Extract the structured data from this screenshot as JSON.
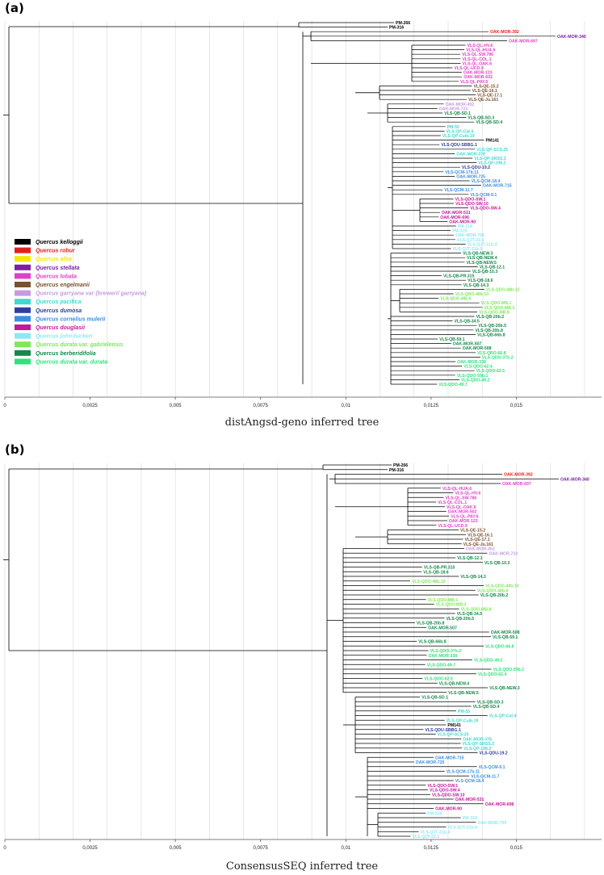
{
  "panels": [
    {
      "label": "(a)",
      "caption": "distAngsd-geno inferred tree",
      "axis_ticks": [
        "0",
        "0,0025",
        "0,005",
        "0,0075",
        "0,01",
        "0,0125",
        "0,015"
      ],
      "leaves": [
        {
          "name": "PM-266",
          "species": "kelloggii"
        },
        {
          "name": "PM-316",
          "species": "kelloggii"
        },
        {
          "name": "OAK-MOR-392",
          "species": "robur"
        },
        {
          "name": "OAK-MOR-340",
          "species": "stellata"
        },
        {
          "name": "OAK-MOR-697",
          "species": "lobata"
        },
        {
          "name": "VLS-QL-HV.6",
          "species": "lobata"
        },
        {
          "name": "VLS-QL-HUA.6",
          "species": "lobata"
        },
        {
          "name": "VLS-QL-SW.786",
          "species": "lobata"
        },
        {
          "name": "VLS-QL-COL.1",
          "species": "lobata"
        },
        {
          "name": "VLS-QL-OAK.6",
          "species": "lobata"
        },
        {
          "name": "VLS-QL-UCD.9",
          "species": "lobata"
        },
        {
          "name": "OAK-MOR-123",
          "species": "lobata"
        },
        {
          "name": "OAK-MOR-502",
          "species": "lobata"
        },
        {
          "name": "VLS-QL-PAY.6",
          "species": "lobata"
        },
        {
          "name": "VLS-QE-15.2",
          "species": "engelmanii"
        },
        {
          "name": "VLS-QE-16.1",
          "species": "engelmanii"
        },
        {
          "name": "VLS-QE-17.1",
          "species": "engelmanii"
        },
        {
          "name": "VLS-QE-Ju.161",
          "species": "engelmanii"
        },
        {
          "name": "OAK-MOR-452",
          "species": "garryana"
        },
        {
          "name": "OAK-MOR-723",
          "species": "garryana"
        },
        {
          "name": "VLS-QB-SD.1",
          "species": "berberidifolia"
        },
        {
          "name": "VLS-QB-SD.3",
          "species": "berberidifolia"
        },
        {
          "name": "VLS-QB-SD.4",
          "species": "berberidifolia"
        },
        {
          "name": "PM-55",
          "species": "pacifica"
        },
        {
          "name": "VLS-QP-Cat.4",
          "species": "pacifica"
        },
        {
          "name": "VLS-QP-Cuib.19",
          "species": "pacifica"
        },
        {
          "name": "PM141",
          "species": "kelloggii"
        },
        {
          "name": "VLS-QDU-SBBG.1",
          "species": "dumosa"
        },
        {
          "name": "VLS-QP-SCS.25",
          "species": "pacifica"
        },
        {
          "name": "OAK-MOR-378",
          "species": "pacifica"
        },
        {
          "name": "VLS-QP-SRSS.3",
          "species": "pacifica"
        },
        {
          "name": "VLS-QP-198.2",
          "species": "pacifica"
        },
        {
          "name": "VLS-QDU-19.2",
          "species": "dumosa"
        },
        {
          "name": "VLS-QCM-17b.11",
          "species": "cornelius"
        },
        {
          "name": "OAK-MOR-725",
          "species": "cornelius"
        },
        {
          "name": "VLS-QCM-18.4",
          "species": "cornelius"
        },
        {
          "name": "OAK-MOR-715",
          "species": "cornelius"
        },
        {
          "name": "VLS-QCM-11.7",
          "species": "cornelius"
        },
        {
          "name": "VLS-QCM-9.1",
          "species": "cornelius"
        },
        {
          "name": "VLS-QDO-SW.1",
          "species": "douglasii"
        },
        {
          "name": "VLS-QDO-SW.10",
          "species": "douglasii"
        },
        {
          "name": "VLS-QDO-SW.4",
          "species": "douglasii"
        },
        {
          "name": "OAK-MOR-531",
          "species": "douglasii"
        },
        {
          "name": "OAK-MOR-696",
          "species": "douglasii"
        },
        {
          "name": "OAK-MOR-90",
          "species": "douglasii"
        },
        {
          "name": "PM-318",
          "species": "johntuckeri"
        },
        {
          "name": "PM-319",
          "species": "johntuckeri"
        },
        {
          "name": "OAK-MOR-709",
          "species": "johntuckeri"
        },
        {
          "name": "VLS-QJT-22.3",
          "species": "johntuckeri"
        },
        {
          "name": "VLS-QJT-21b.4",
          "species": "johntuckeri"
        },
        {
          "name": "VLS-QJT-21b.6",
          "species": "johntuckeri"
        },
        {
          "name": "VLS-QB-NEW.3",
          "species": "berberidifolia"
        },
        {
          "name": "VLS-QB-NEW.4",
          "species": "berberidifolia"
        },
        {
          "name": "VLS-QB-NEW.5",
          "species": "berberidifolia"
        },
        {
          "name": "VLS-QB-12.1",
          "species": "berberidifolia"
        },
        {
          "name": "VLS-QB-10.3",
          "species": "berberidifolia"
        },
        {
          "name": "VLS-QB-PR.315",
          "species": "berberidifolia"
        },
        {
          "name": "VLS-QB-18.6",
          "species": "berberidifolia"
        },
        {
          "name": "VLS-QB-14.3",
          "species": "berberidifolia"
        },
        {
          "name": "VLS-QDO-48b.12",
          "species": "gabrielensis"
        },
        {
          "name": "VLS-QDO-48b.10",
          "species": "gabrielensis"
        },
        {
          "name": "VLS-QDO-48b.6",
          "species": "gabrielensis"
        },
        {
          "name": "VLS-QDO-MB.1",
          "species": "gabrielensis"
        },
        {
          "name": "VLS-QDO-MB.3",
          "species": "gabrielensis"
        },
        {
          "name": "VLS-QDO-MB.8",
          "species": "gabrielensis"
        },
        {
          "name": "VLS-QB-20b.2",
          "species": "berberidifolia"
        },
        {
          "name": "VLS-QB-34.5",
          "species": "berberidifolia"
        },
        {
          "name": "VLS-QB-20b.5",
          "species": "berberidifolia"
        },
        {
          "name": "VLS-QB-20b.8",
          "species": "berberidifolia"
        },
        {
          "name": "VLS-QB-66b.8",
          "species": "berberidifolia"
        },
        {
          "name": "VLS-QB-59.1",
          "species": "berberidifolia"
        },
        {
          "name": "OAK-MOR-507",
          "species": "berberidifolia"
        },
        {
          "name": "OAK-MOR-508",
          "species": "berberidifolia"
        },
        {
          "name": "VLS-QDO-66.8",
          "species": "durata"
        },
        {
          "name": "VLS-QDO-37b.2",
          "species": "durata"
        },
        {
          "name": "OAK-MOR-338",
          "species": "durata"
        },
        {
          "name": "VLS-QDO-62.4",
          "species": "durata"
        },
        {
          "name": "VLS-QDO-62.5",
          "species": "durata"
        },
        {
          "name": "VLS-QDO-59b.1",
          "species": "durata"
        },
        {
          "name": "VLS-QDO-49.2",
          "species": "durata"
        },
        {
          "name": "VLS-QDO-49.7",
          "species": "durata"
        }
      ]
    },
    {
      "label": "(b)",
      "caption": "ConsensusSEQ inferred tree",
      "axis_ticks": [
        "0",
        "0,0025",
        "0,005",
        "0,0075",
        "0,01",
        "0,0125",
        "0,015"
      ],
      "leaves": [
        {
          "name": "PM-266",
          "species": "kelloggii"
        },
        {
          "name": "PM-316",
          "species": "kelloggii"
        },
        {
          "name": "OAK-MOR-392",
          "species": "robur"
        },
        {
          "name": "OAK-MOR-340",
          "species": "stellata"
        },
        {
          "name": "OAK-MOR-697",
          "species": "lobata"
        },
        {
          "name": "VLS-QL-HUA.6",
          "species": "lobata"
        },
        {
          "name": "VLS-QL-HV.6",
          "species": "lobata"
        },
        {
          "name": "VLS-QL-SW.786",
          "species": "lobata"
        },
        {
          "name": "VLS-QL-COL.1",
          "species": "lobata"
        },
        {
          "name": "VLS-QL-OAK.6",
          "species": "lobata"
        },
        {
          "name": "OAK-MOR-502",
          "species": "lobata"
        },
        {
          "name": "VLS-QL-PAY.6",
          "species": "lobata"
        },
        {
          "name": "OAK-MOR-123",
          "species": "lobata"
        },
        {
          "name": "VLS-QL-UCD.9",
          "species": "lobata"
        },
        {
          "name": "VLS-QE-15.2",
          "species": "engelmanii"
        },
        {
          "name": "VLS-QE-16.1",
          "species": "engelmanii"
        },
        {
          "name": "VLS-QE-17.1",
          "species": "engelmanii"
        },
        {
          "name": "VLS-QE-Ju.161",
          "species": "engelmanii"
        },
        {
          "name": "OAK-MOR-452",
          "species": "garryana"
        },
        {
          "name": "OAK-MOR-723",
          "species": "garryana"
        },
        {
          "name": "VLS-QB-12.1",
          "species": "berberidifolia"
        },
        {
          "name": "VLS-QB-10.3",
          "species": "berberidifolia"
        },
        {
          "name": "VLS-QB-PR.315",
          "species": "berberidifolia"
        },
        {
          "name": "VLS-QB-18.6",
          "species": "berberidifolia"
        },
        {
          "name": "VLS-QB-14.3",
          "species": "berberidifolia"
        },
        {
          "name": "VLS-QDO-48b.12",
          "species": "gabrielensis"
        },
        {
          "name": "VLS-QDO-48b.10",
          "species": "gabrielensis"
        },
        {
          "name": "VLS-QDO-48b.6",
          "species": "gabrielensis"
        },
        {
          "name": "VLS-QB-20b.2",
          "species": "berberidifolia"
        },
        {
          "name": "VLS-QDO-MB.1",
          "species": "gabrielensis"
        },
        {
          "name": "VLS-QDO-MB.3",
          "species": "gabrielensis"
        },
        {
          "name": "VLS-QDO-MB.8",
          "species": "gabrielensis"
        },
        {
          "name": "VLS-QB-34.5",
          "species": "berberidifolia"
        },
        {
          "name": "VLS-QB-20b.5",
          "species": "berberidifolia"
        },
        {
          "name": "VLS-QB-20b.8",
          "species": "berberidifolia"
        },
        {
          "name": "OAK-MOR-507",
          "species": "berberidifolia"
        },
        {
          "name": "OAK-MOR-508",
          "species": "berberidifolia"
        },
        {
          "name": "VLS-QB-59.1",
          "species": "berberidifolia"
        },
        {
          "name": "VLS-QB-66b.8",
          "species": "berberidifolia"
        },
        {
          "name": "VLS-QDO-66.8",
          "species": "durata"
        },
        {
          "name": "VLS-QDO-37b.2",
          "species": "durata"
        },
        {
          "name": "OAK-MOR-338",
          "species": "durata"
        },
        {
          "name": "VLS-QDO-49.2",
          "species": "durata"
        },
        {
          "name": "VLS-QDO-49.7",
          "species": "durata"
        },
        {
          "name": "VLS-QDO-59b.1",
          "species": "durata"
        },
        {
          "name": "VLS-QDO-62.4",
          "species": "durata"
        },
        {
          "name": "VLS-QDO-62.5",
          "species": "durata"
        },
        {
          "name": "VLS-QB-NEW.4",
          "species": "berberidifolia"
        },
        {
          "name": "VLS-QB-NEW.3",
          "species": "berberidifolia"
        },
        {
          "name": "VLS-QB-NEW.5",
          "species": "berberidifolia"
        },
        {
          "name": "VLS-QB-SD.1",
          "species": "berberidifolia"
        },
        {
          "name": "VLS-QB-SD.3",
          "species": "berberidifolia"
        },
        {
          "name": "VLS-QB-SD.4",
          "species": "berberidifolia"
        },
        {
          "name": "PM-55",
          "species": "pacifica"
        },
        {
          "name": "VLS-QP-Cat.4",
          "species": "pacifica"
        },
        {
          "name": "VLS-QP-Cuib.19",
          "species": "pacifica"
        },
        {
          "name": "PM141",
          "species": "kelloggii"
        },
        {
          "name": "VLS-QDU-SBBG.1",
          "species": "dumosa"
        },
        {
          "name": "VLS-QP-SCS.25",
          "species": "pacifica"
        },
        {
          "name": "OAK-MOR-378",
          "species": "pacifica"
        },
        {
          "name": "VLS-QP-SRSS.3",
          "species": "pacifica"
        },
        {
          "name": "VLS-QP-198.2",
          "species": "pacifica"
        },
        {
          "name": "VLS-QDU-19.2",
          "species": "dumosa"
        },
        {
          "name": "OAK-MOR-715",
          "species": "cornelius"
        },
        {
          "name": "OAK-MOR-725",
          "species": "cornelius"
        },
        {
          "name": "VLS-QCM-9.1",
          "species": "cornelius"
        },
        {
          "name": "VLS-QCM-17b.11",
          "species": "cornelius"
        },
        {
          "name": "VLS-QCM-11.7",
          "species": "cornelius"
        },
        {
          "name": "VLS-QCM-18.4",
          "species": "cornelius"
        },
        {
          "name": "VLS-QDO-SW.1",
          "species": "douglasii"
        },
        {
          "name": "VLS-QDO-SW.4",
          "species": "douglasii"
        },
        {
          "name": "VLS-QDO-SW.10",
          "species": "douglasii"
        },
        {
          "name": "OAK-MOR-531",
          "species": "douglasii"
        },
        {
          "name": "OAK-MOR-696",
          "species": "douglasii"
        },
        {
          "name": "OAK-MOR-90",
          "species": "douglasii"
        },
        {
          "name": "PM-318",
          "species": "johntuckeri"
        },
        {
          "name": "PM-319",
          "species": "johntuckeri"
        },
        {
          "name": "OAK-MOR-709",
          "species": "johntuckeri"
        },
        {
          "name": "VLS-QJT-21b.6",
          "species": "johntuckeri"
        },
        {
          "name": "VLS-QJT-21b.4",
          "species": "johntuckeri"
        },
        {
          "name": "VLS-QJT-22.3",
          "species": "johntuckeri"
        }
      ]
    }
  ],
  "legend": [
    {
      "key": "kelloggii",
      "label": "Quercus kelloggii",
      "color": "#000000"
    },
    {
      "key": "robur",
      "label": "Quercus robur",
      "color": "#e3211c"
    },
    {
      "key": "alba",
      "label": "Quercus alba",
      "color": "#f5e800"
    },
    {
      "key": "stellata",
      "label": "Quercus stellata",
      "color": "#7b1fa2"
    },
    {
      "key": "lobata",
      "label": "Quercus lobata",
      "color": "#e040c8"
    },
    {
      "key": "engelmanii",
      "label": "Quercus engelmanii",
      "color": "#7a5230"
    },
    {
      "key": "garryana",
      "label": "Quercus garryana var (breweri/ garryana)",
      "color": "#c79be0"
    },
    {
      "key": "pacifica",
      "label": "Quercus pacifica",
      "color": "#3fd9d0"
    },
    {
      "key": "dumosa",
      "label": "Quercus dumosa",
      "color": "#2f3e9e"
    },
    {
      "key": "cornelius",
      "label": "Quercus cornelius mulerii",
      "color": "#3b8fe0"
    },
    {
      "key": "douglasii",
      "label": "Quercus douglasii",
      "color": "#c2189b"
    },
    {
      "key": "johntuckeri",
      "label": "Quercus john-tuckeri",
      "color": "#8ce8f5"
    },
    {
      "key": "gabrielensis",
      "label": "Quercus durata var. gabrielensis",
      "color": "#7ee85a"
    },
    {
      "key": "berberidifolia",
      "label": "Quercus berberidifolia",
      "color": "#138a4a"
    },
    {
      "key": "durata",
      "label": "Quercus durata var. durata",
      "color": "#2ee37a"
    }
  ]
}
